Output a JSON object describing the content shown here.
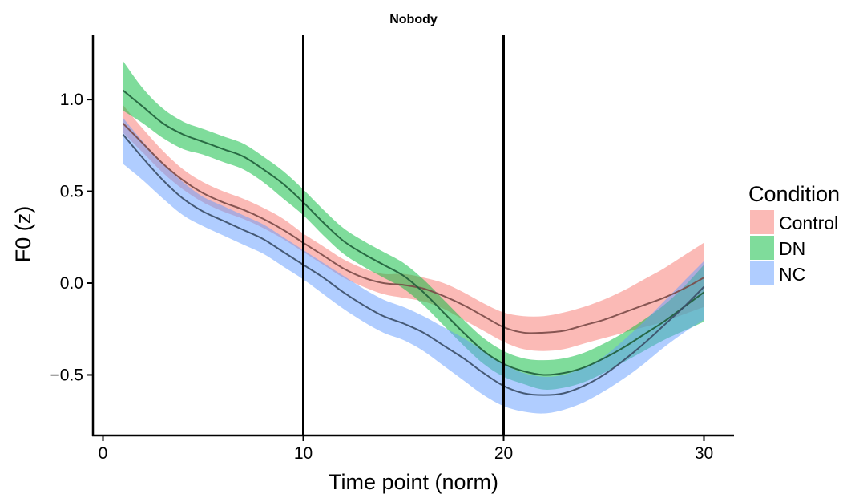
{
  "chart_data": {
    "type": "line",
    "title": "Nobody",
    "xlabel": "Time point (norm)",
    "ylabel": "F0 (z)",
    "xlim": [
      -0.5,
      31.5
    ],
    "ylim": [
      -0.83,
      1.35
    ],
    "x_ticks": [
      0,
      10,
      20,
      30
    ],
    "x_tick_labels": [
      "0",
      "10",
      "20",
      "30"
    ],
    "y_ticks": [
      -0.5,
      0.0,
      0.5,
      1.0
    ],
    "y_tick_labels": [
      "−0.5",
      "0.0",
      "0.5",
      "1.0"
    ],
    "vlines": [
      10,
      20
    ],
    "grid": false,
    "legend": {
      "title": "Condition",
      "position": "right"
    },
    "series": [
      {
        "name": "Control",
        "color": "#F8766D",
        "line_color": "#7A4A47",
        "x": [
          1,
          2,
          3,
          4,
          5,
          6,
          7,
          8,
          9,
          10,
          11,
          12,
          13,
          14,
          15,
          16,
          17,
          18,
          19,
          20,
          21,
          22,
          23,
          24,
          25,
          26,
          27,
          28,
          29,
          30
        ],
        "y": [
          0.87,
          0.76,
          0.65,
          0.56,
          0.49,
          0.44,
          0.4,
          0.35,
          0.29,
          0.22,
          0.15,
          0.08,
          0.03,
          0.0,
          -0.01,
          -0.03,
          -0.07,
          -0.12,
          -0.18,
          -0.24,
          -0.27,
          -0.27,
          -0.26,
          -0.23,
          -0.2,
          -0.16,
          -0.12,
          -0.08,
          -0.03,
          0.03
        ],
        "lower": [
          0.82,
          0.71,
          0.6,
          0.51,
          0.44,
          0.39,
          0.35,
          0.3,
          0.24,
          0.17,
          0.1,
          0.03,
          -0.02,
          -0.06,
          -0.08,
          -0.1,
          -0.14,
          -0.2,
          -0.26,
          -0.32,
          -0.36,
          -0.37,
          -0.36,
          -0.33,
          -0.3,
          -0.27,
          -0.24,
          -0.21,
          -0.17,
          -0.13
        ],
        "upper": [
          0.97,
          0.84,
          0.72,
          0.62,
          0.55,
          0.5,
          0.46,
          0.41,
          0.35,
          0.27,
          0.2,
          0.13,
          0.08,
          0.05,
          0.05,
          0.03,
          0.0,
          -0.05,
          -0.11,
          -0.16,
          -0.18,
          -0.18,
          -0.16,
          -0.13,
          -0.09,
          -0.04,
          0.02,
          0.08,
          0.15,
          0.22
        ]
      },
      {
        "name": "DN",
        "color": "#00BA38",
        "line_color": "#1F5E3A",
        "x": [
          1,
          2,
          3,
          4,
          5,
          6,
          7,
          8,
          9,
          10,
          11,
          12,
          13,
          14,
          15,
          16,
          17,
          18,
          19,
          20,
          21,
          22,
          23,
          24,
          25,
          26,
          27,
          28,
          29,
          30
        ],
        "y": [
          1.05,
          0.96,
          0.87,
          0.81,
          0.77,
          0.73,
          0.69,
          0.62,
          0.54,
          0.44,
          0.33,
          0.23,
          0.16,
          0.1,
          0.04,
          -0.05,
          -0.16,
          -0.27,
          -0.37,
          -0.44,
          -0.48,
          -0.5,
          -0.49,
          -0.46,
          -0.41,
          -0.35,
          -0.28,
          -0.21,
          -0.13,
          -0.05
        ],
        "lower": [
          0.94,
          0.87,
          0.79,
          0.73,
          0.7,
          0.66,
          0.62,
          0.55,
          0.46,
          0.37,
          0.26,
          0.16,
          0.09,
          0.03,
          -0.03,
          -0.12,
          -0.23,
          -0.34,
          -0.44,
          -0.51,
          -0.55,
          -0.58,
          -0.57,
          -0.54,
          -0.49,
          -0.43,
          -0.37,
          -0.31,
          -0.26,
          -0.21
        ],
        "upper": [
          1.21,
          1.06,
          0.95,
          0.88,
          0.84,
          0.8,
          0.76,
          0.69,
          0.61,
          0.51,
          0.4,
          0.3,
          0.23,
          0.17,
          0.11,
          0.02,
          -0.09,
          -0.2,
          -0.3,
          -0.37,
          -0.41,
          -0.42,
          -0.41,
          -0.38,
          -0.33,
          -0.27,
          -0.2,
          -0.12,
          -0.02,
          0.1
        ]
      },
      {
        "name": "NC",
        "color": "#619CFF",
        "line_color": "#3A4D66",
        "x": [
          1,
          2,
          3,
          4,
          5,
          6,
          7,
          8,
          9,
          10,
          11,
          12,
          13,
          14,
          15,
          16,
          17,
          18,
          19,
          20,
          21,
          22,
          23,
          24,
          25,
          26,
          27,
          28,
          29,
          30
        ],
        "y": [
          0.81,
          0.68,
          0.56,
          0.46,
          0.39,
          0.34,
          0.29,
          0.24,
          0.17,
          0.1,
          0.03,
          -0.05,
          -0.12,
          -0.18,
          -0.22,
          -0.27,
          -0.34,
          -0.41,
          -0.49,
          -0.56,
          -0.6,
          -0.61,
          -0.6,
          -0.56,
          -0.5,
          -0.42,
          -0.33,
          -0.23,
          -0.13,
          -0.02
        ],
        "lower": [
          0.65,
          0.56,
          0.46,
          0.37,
          0.31,
          0.26,
          0.21,
          0.16,
          0.09,
          0.02,
          -0.06,
          -0.14,
          -0.21,
          -0.27,
          -0.31,
          -0.37,
          -0.45,
          -0.53,
          -0.61,
          -0.67,
          -0.7,
          -0.71,
          -0.69,
          -0.65,
          -0.59,
          -0.52,
          -0.44,
          -0.35,
          -0.27,
          -0.2
        ],
        "upper": [
          0.9,
          0.77,
          0.65,
          0.55,
          0.47,
          0.42,
          0.37,
          0.32,
          0.25,
          0.18,
          0.11,
          0.04,
          -0.03,
          -0.09,
          -0.13,
          -0.18,
          -0.24,
          -0.3,
          -0.37,
          -0.44,
          -0.49,
          -0.51,
          -0.5,
          -0.46,
          -0.4,
          -0.31,
          -0.21,
          -0.1,
          0.01,
          0.12
        ]
      }
    ]
  }
}
